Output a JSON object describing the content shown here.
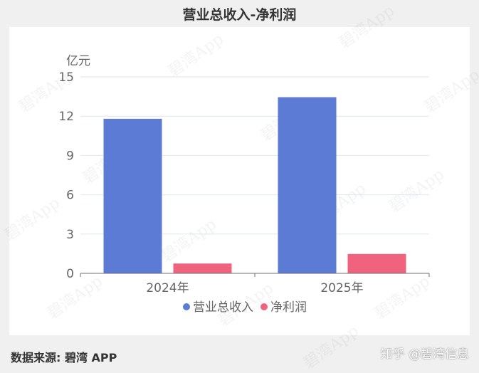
{
  "title": "营业总收入-净利润",
  "footer": {
    "source": "数据来源: 碧湾 APP",
    "brand": "知乎 @碧湾信息"
  },
  "watermark": "碧湾App",
  "chart_data": {
    "type": "bar",
    "title": "营业总收入-净利润",
    "ylabel": "亿元",
    "xlabel": "",
    "categories": [
      "2024年",
      "2025年"
    ],
    "ylim": [
      0,
      15
    ],
    "yticks": [
      0,
      3,
      6,
      9,
      12,
      15
    ],
    "grid": true,
    "legend": "bottom",
    "series": [
      {
        "name": "营业总收入",
        "color": "#5b7bd5",
        "values": [
          11.8,
          13.45
        ]
      },
      {
        "name": "净利润",
        "color": "#f0637e",
        "values": [
          0.75,
          1.48
        ]
      }
    ]
  }
}
